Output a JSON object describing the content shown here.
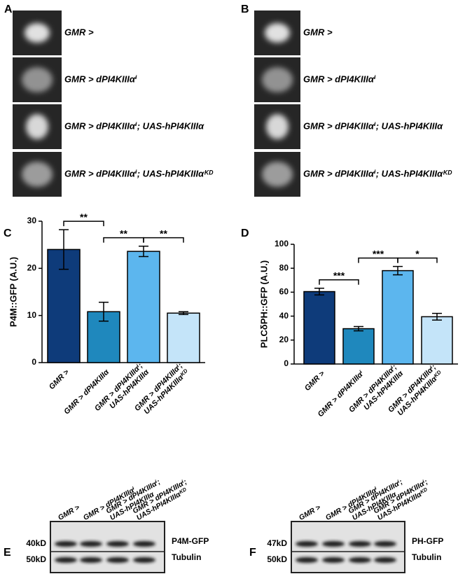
{
  "panel_labels": [
    "A",
    "B",
    "C",
    "D",
    "E",
    "F"
  ],
  "images": [
    {
      "rows": [
        "GMR >",
        "GMR > dPI4KIIIαⁱ",
        "GMR > dPI4KIIIαⁱ; UAS-hPI4KIIIα",
        "GMR > dPI4KIIIαⁱ; UAS-hPI4KIIIαᴷᴰ"
      ]
    },
    {
      "rows": [
        "GMR >",
        "GMR > dPI4KIIIαⁱ",
        "GMR > dPI4KIIIαⁱ; UAS-hPI4KIIIα",
        "GMR > dPI4KIIIαⁱ; UAS-hPI4KIIIαᴷᴰ"
      ]
    }
  ],
  "chart_data": [
    {
      "type": "bar",
      "ylabel": "P4M::GFP (A.U.)",
      "categories": [
        [
          "GMR >"
        ],
        [
          "GMR > dPI4KIIIα"
        ],
        [
          "GMR > dPI4KIIIαⁱ;",
          "UAS-hPI4KIIIα"
        ],
        [
          "GMR > dPI4KIIIαⁱ;",
          "UAS-hPI4KIIIαᴷᴰ"
        ]
      ],
      "values": [
        24,
        10.8,
        23.6,
        10.5
      ],
      "errors": [
        4.2,
        2,
        1.1,
        0.3
      ],
      "colors": [
        "#0e3b7a",
        "#1f88bd",
        "#5cb6ee",
        "#c4e4f9"
      ],
      "ylim": [
        0,
        30
      ],
      "yticks": [
        0,
        10,
        20,
        30
      ],
      "significance": [
        "**",
        "**",
        "**"
      ]
    },
    {
      "type": "bar",
      "ylabel": "PLCδPH::GFP (A.U.)",
      "categories": [
        [
          "GMR >"
        ],
        [
          "GMR > dPI4KIIIαⁱ"
        ],
        [
          "GMR > dPI4KIIIαⁱ;",
          "UAS-hPI4KIIIα"
        ],
        [
          "GMR > dPI4KIIIαⁱ;",
          "UAS-hPI4KIIIαᴷᴰ"
        ]
      ],
      "values": [
        60.5,
        29.5,
        78,
        39.5
      ],
      "errors": [
        2.8,
        1.8,
        3.5,
        2.8
      ],
      "colors": [
        "#0e3b7a",
        "#1f88bd",
        "#5cb6ee",
        "#c4e4f9"
      ],
      "ylim": [
        0,
        100
      ],
      "yticks": [
        0,
        20,
        40,
        60,
        80,
        100
      ],
      "significance": [
        "***",
        "***",
        "*"
      ]
    }
  ],
  "blots": [
    {
      "lanes": [
        [
          "GMR >"
        ],
        [
          "GMR > dPI4KIIIαⁱ"
        ],
        [
          "GMR > dPI4KIIIαⁱ;",
          "UAS-hPI4KIIIα"
        ],
        [
          "GMR > dPI4KIIIαⁱ;",
          "UAS-hPI4KIIIαᴷᴰ"
        ]
      ],
      "bands": [
        {
          "size": "40kD",
          "protein": "P4M-GFP"
        },
        {
          "size": "50kD",
          "protein": "Tubulin"
        }
      ]
    },
    {
      "lanes": [
        [
          "GMR >"
        ],
        [
          "GMR > dPI4KIIIαⁱ"
        ],
        [
          "GMR > dPI4KIIIαⁱ;",
          "UAS-hPI4KIIIα"
        ],
        [
          "GMR > dPI4KIIIαⁱ;",
          "UAS-hPI4KIIIαᴷᴰ"
        ]
      ],
      "bands": [
        {
          "size": "47kD",
          "protein": "PH-GFP"
        },
        {
          "size": "50kD",
          "protein": "Tubulin"
        }
      ]
    }
  ]
}
